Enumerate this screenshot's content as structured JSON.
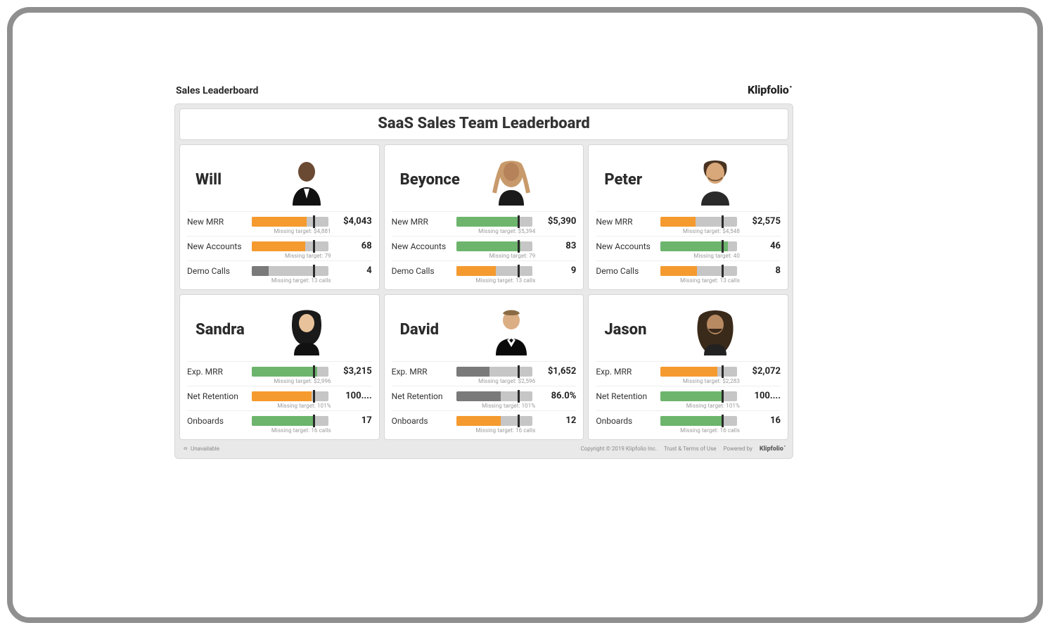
{
  "page": {
    "title": "Sales Leaderboard",
    "brand": "Klipfolio"
  },
  "dashboard": {
    "title": "SaaS Sales Team Leaderboard"
  },
  "colors": {
    "orange": "#f59a2f",
    "green": "#6db56d",
    "grey": "#7a7a7a",
    "track": "#c6c6c6",
    "target_marker": "#2b2b2b",
    "card_bg": "#ffffff",
    "grid_bg": "#e9e9e9",
    "border": "#d6d6d6"
  },
  "bar_settings": {
    "target_pct": 80
  },
  "people": [
    {
      "name": "Will",
      "avatar": "will",
      "metrics": [
        {
          "label": "New MRR",
          "value": "$4,043",
          "fill_pct": 72,
          "color_key": "orange",
          "sub": "Missing target: $4,881"
        },
        {
          "label": "New Accounts",
          "value": "68",
          "fill_pct": 70,
          "color_key": "orange",
          "sub": "Missing target: 79"
        },
        {
          "label": "Demo Calls",
          "value": "4",
          "fill_pct": 22,
          "color_key": "grey",
          "sub": "Missing target: 13 calls"
        }
      ]
    },
    {
      "name": "Beyonce",
      "avatar": "beyonce",
      "metrics": [
        {
          "label": "New MRR",
          "value": "$5,390",
          "fill_pct": 82,
          "color_key": "green",
          "sub": "Missing target: $5,394"
        },
        {
          "label": "New Accounts",
          "value": "83",
          "fill_pct": 84,
          "color_key": "green",
          "sub": "Missing target: 79"
        },
        {
          "label": "Demo Calls",
          "value": "9",
          "fill_pct": 52,
          "color_key": "orange",
          "sub": "Missing target: 13 calls"
        }
      ]
    },
    {
      "name": "Peter",
      "avatar": "peter",
      "metrics": [
        {
          "label": "New MRR",
          "value": "$2,575",
          "fill_pct": 46,
          "color_key": "orange",
          "sub": "Missing target: $4,548"
        },
        {
          "label": "New Accounts",
          "value": "46",
          "fill_pct": 88,
          "color_key": "green",
          "sub": "Missing target: 40"
        },
        {
          "label": "Demo Calls",
          "value": "8",
          "fill_pct": 48,
          "color_key": "orange",
          "sub": "Missing target: 13 calls"
        }
      ]
    },
    {
      "name": "Sandra",
      "avatar": "sandra",
      "metrics": [
        {
          "label": "Exp. MRR",
          "value": "$3,215",
          "fill_pct": 86,
          "color_key": "green",
          "sub": "Missing target: $2,996"
        },
        {
          "label": "Net Retention",
          "value": "100....",
          "fill_pct": 78,
          "color_key": "orange",
          "sub": "Missing target: 101%"
        },
        {
          "label": "Onboards",
          "value": "17",
          "fill_pct": 82,
          "color_key": "green",
          "sub": "Missing target: 16 calls"
        }
      ]
    },
    {
      "name": "David",
      "avatar": "david",
      "metrics": [
        {
          "label": "Exp. MRR",
          "value": "$1,652",
          "fill_pct": 44,
          "color_key": "grey",
          "sub": "Missing target: $2,596"
        },
        {
          "label": "Net Retention",
          "value": "86.0%",
          "fill_pct": 58,
          "color_key": "grey",
          "sub": "Missing target: 101%"
        },
        {
          "label": "Onboards",
          "value": "12",
          "fill_pct": 58,
          "color_key": "orange",
          "sub": "Missing target: 16 calls"
        }
      ]
    },
    {
      "name": "Jason",
      "avatar": "jason",
      "metrics": [
        {
          "label": "Exp. MRR",
          "value": "$2,072",
          "fill_pct": 74,
          "color_key": "orange",
          "sub": "Missing target: $2,283"
        },
        {
          "label": "Net Retention",
          "value": "100....",
          "fill_pct": 82,
          "color_key": "green",
          "sub": "Missing target: 101%"
        },
        {
          "label": "Onboards",
          "value": "16",
          "fill_pct": 80,
          "color_key": "green",
          "sub": "Missing target: 16 calls"
        }
      ]
    }
  ],
  "footer": {
    "left": "Unavailable",
    "copyright": "Copyright © 2019 Klipfolio Inc.",
    "terms": "Trust & Terms of Use",
    "powered": "Powered by",
    "powered_brand": "Klipfolio"
  }
}
